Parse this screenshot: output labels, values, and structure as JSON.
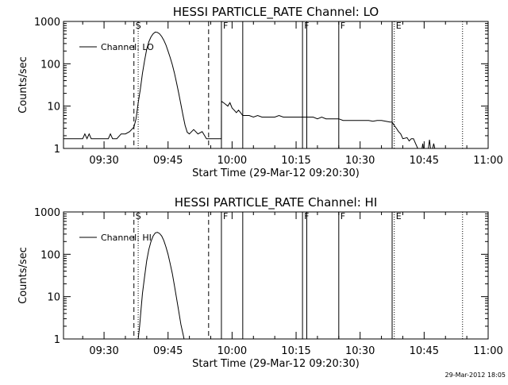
{
  "footer": {
    "timestamp": "29-Mar-2012 18:05"
  },
  "chart_data": [
    {
      "type": "line",
      "title": "HESSI PARTICLE_RATE Channel: LO",
      "xlabel": "Start Time (29-Mar-12 09:20:30)",
      "ylabel": "Counts/sec",
      "yscale": "log",
      "xlim": [
        "09:20:30",
        "11:00:00"
      ],
      "ylim": [
        1,
        1000
      ],
      "x_ticks": [
        "09:30",
        "09:45",
        "10:00",
        "10:15",
        "10:30",
        "10:45",
        "11:00"
      ],
      "y_ticks": [
        "1",
        "10",
        "100",
        "1000"
      ],
      "legend": {
        "label": "Channel: LO",
        "position": "top-left"
      },
      "grid": false,
      "markers": [
        {
          "label": "S",
          "time": "09:37:00",
          "style": "dashed"
        },
        {
          "label": "",
          "time": "09:38:00",
          "style": "dotted"
        },
        {
          "label": "",
          "time": "09:54:30",
          "style": "dashed"
        },
        {
          "label": "F",
          "time": "09:57:30",
          "style": "solid"
        },
        {
          "label": "",
          "time": "10:02:30",
          "style": "solid"
        },
        {
          "label": "F",
          "time": "10:16:30",
          "style": "solid"
        },
        {
          "label": "",
          "time": "10:17:30",
          "style": "solid"
        },
        {
          "label": "F",
          "time": "10:25:00",
          "style": "solid"
        },
        {
          "label": "",
          "time": "10:37:30",
          "style": "solid"
        },
        {
          "label": "E",
          "time": "10:38:00",
          "style": "dotted"
        },
        {
          "label": "",
          "time": "10:54:00",
          "style": "dotted"
        }
      ],
      "series": [
        {
          "name": "Channel: LO",
          "points": [
            [
              "09:20:30",
              1.7
            ],
            [
              "09:25:00",
              1.7
            ],
            [
              "09:25:30",
              2.2
            ],
            [
              "09:26:00",
              1.7
            ],
            [
              "09:26:30",
              2.2
            ],
            [
              "09:27:00",
              1.7
            ],
            [
              "09:31:00",
              1.7
            ],
            [
              "09:31:30",
              2.2
            ],
            [
              "09:32:00",
              1.7
            ],
            [
              "09:33:00",
              1.7
            ],
            [
              "09:34:00",
              2.2
            ],
            [
              "09:35:00",
              2.2
            ],
            [
              "09:36:00",
              2.5
            ],
            [
              "09:37:00",
              3.2
            ],
            [
              "09:37:30",
              5
            ],
            [
              "09:38:00",
              12
            ],
            [
              "09:38:30",
              25
            ],
            [
              "09:39:00",
              60
            ],
            [
              "09:39:30",
              120
            ],
            [
              "09:40:00",
              220
            ],
            [
              "09:40:30",
              330
            ],
            [
              "09:41:00",
              430
            ],
            [
              "09:41:30",
              510
            ],
            [
              "09:42:00",
              560
            ],
            [
              "09:42:30",
              550
            ],
            [
              "09:43:00",
              510
            ],
            [
              "09:43:30",
              440
            ],
            [
              "09:44:00",
              360
            ],
            [
              "09:44:30",
              280
            ],
            [
              "09:45:00",
              200
            ],
            [
              "09:45:30",
              140
            ],
            [
              "09:46:00",
              95
            ],
            [
              "09:46:30",
              60
            ],
            [
              "09:47:00",
              35
            ],
            [
              "09:47:30",
              20
            ],
            [
              "09:48:00",
              11
            ],
            [
              "09:48:30",
              6
            ],
            [
              "09:49:00",
              3.5
            ],
            [
              "09:49:30",
              2.4
            ],
            [
              "09:50:00",
              2.2
            ],
            [
              "09:51:00",
              2.8
            ],
            [
              "09:52:00",
              2.2
            ],
            [
              "09:53:00",
              2.5
            ],
            [
              "09:54:00",
              1.7
            ],
            [
              "09:55:00",
              1.7
            ],
            [
              "09:56:00",
              1.7
            ],
            [
              "09:57:30",
              1.7
            ],
            [
              "09:57:31",
              13
            ],
            [
              "09:58:00",
              12
            ],
            [
              "09:58:30",
              11
            ],
            [
              "09:59:00",
              10
            ],
            [
              "09:59:30",
              12
            ],
            [
              "10:00:00",
              9
            ],
            [
              "10:00:30",
              8
            ],
            [
              "10:01:00",
              7
            ],
            [
              "10:01:30",
              8
            ],
            [
              "10:02:00",
              7
            ],
            [
              "10:02:30",
              6
            ],
            [
              "10:03:00",
              6
            ],
            [
              "10:04:00",
              6
            ],
            [
              "10:05:00",
              5.5
            ],
            [
              "10:06:00",
              6
            ],
            [
              "10:07:00",
              5.5
            ],
            [
              "10:08:00",
              5.5
            ],
            [
              "10:09:00",
              5.5
            ],
            [
              "10:10:00",
              5.5
            ],
            [
              "10:11:00",
              6
            ],
            [
              "10:12:00",
              5.5
            ],
            [
              "10:13:00",
              5.5
            ],
            [
              "10:14:00",
              5.5
            ],
            [
              "10:15:00",
              5.5
            ],
            [
              "10:16:00",
              5.5
            ],
            [
              "10:17:00",
              5.5
            ],
            [
              "10:18:00",
              5.5
            ],
            [
              "10:19:00",
              5.5
            ],
            [
              "10:20:00",
              5
            ],
            [
              "10:21:00",
              5.5
            ],
            [
              "10:22:00",
              5
            ],
            [
              "10:23:00",
              5
            ],
            [
              "10:24:00",
              5
            ],
            [
              "10:25:00",
              5
            ],
            [
              "10:26:00",
              4.6
            ],
            [
              "10:27:00",
              4.6
            ],
            [
              "10:28:00",
              4.6
            ],
            [
              "10:29:00",
              4.6
            ],
            [
              "10:30:00",
              4.6
            ],
            [
              "10:31:00",
              4.6
            ],
            [
              "10:32:00",
              4.6
            ],
            [
              "10:33:00",
              4.4
            ],
            [
              "10:34:00",
              4.6
            ],
            [
              "10:35:00",
              4.6
            ],
            [
              "10:36:00",
              4.4
            ],
            [
              "10:37:00",
              4.2
            ],
            [
              "10:37:30",
              4.2
            ],
            [
              "10:38:00",
              3.5
            ],
            [
              "10:38:30",
              3
            ],
            [
              "10:39:00",
              2.5
            ],
            [
              "10:39:30",
              2.2
            ],
            [
              "10:40:00",
              1.7
            ],
            [
              "10:41:00",
              1.8
            ],
            [
              "10:41:30",
              1.5
            ],
            [
              "10:42:00",
              1.7
            ],
            [
              "10:42:30",
              1.7
            ],
            [
              "10:43:00",
              1.3
            ],
            [
              "10:43:30",
              1.0
            ]
          ],
          "segments": [
            [
              [
                "10:44:30",
                1.0
              ],
              [
                "10:44:40",
                1.3
              ],
              [
                "10:44:50",
                1.0
              ]
            ],
            [
              [
                "10:46:00",
                1.0
              ],
              [
                "10:46:15",
                1.6
              ],
              [
                "10:46:30",
                1.0
              ]
            ],
            [
              [
                "10:47:00",
                1.0
              ],
              [
                "10:47:15",
                1.3
              ],
              [
                "10:47:30",
                1.0
              ]
            ]
          ]
        }
      ]
    },
    {
      "type": "line",
      "title": "HESSI PARTICLE_RATE Channel: HI",
      "xlabel": "Start Time (29-Mar-12 09:20:30)",
      "ylabel": "Counts/sec",
      "yscale": "log",
      "xlim": [
        "09:20:30",
        "11:00:00"
      ],
      "ylim": [
        1,
        1000
      ],
      "x_ticks": [
        "09:30",
        "09:45",
        "10:00",
        "10:15",
        "10:30",
        "10:45",
        "11:00"
      ],
      "y_ticks": [
        "1",
        "10",
        "100",
        "1000"
      ],
      "legend": {
        "label": "Channel: HI",
        "position": "top-left"
      },
      "grid": false,
      "markers": [
        {
          "label": "S",
          "time": "09:37:00",
          "style": "dashed"
        },
        {
          "label": "",
          "time": "09:38:00",
          "style": "dotted"
        },
        {
          "label": "",
          "time": "09:54:30",
          "style": "dashed"
        },
        {
          "label": "F",
          "time": "09:57:30",
          "style": "solid"
        },
        {
          "label": "",
          "time": "10:02:30",
          "style": "solid"
        },
        {
          "label": "F",
          "time": "10:16:30",
          "style": "solid"
        },
        {
          "label": "",
          "time": "10:17:30",
          "style": "solid"
        },
        {
          "label": "F",
          "time": "10:25:00",
          "style": "solid"
        },
        {
          "label": "",
          "time": "10:37:30",
          "style": "solid"
        },
        {
          "label": "E",
          "time": "10:38:00",
          "style": "dotted"
        },
        {
          "label": "",
          "time": "10:54:00",
          "style": "dotted"
        }
      ],
      "series": [
        {
          "name": "Channel: HI",
          "points": [
            [
              "09:38:00",
              1.0
            ],
            [
              "09:38:20",
              2
            ],
            [
              "09:38:40",
              5
            ],
            [
              "09:39:00",
              12
            ],
            [
              "09:39:30",
              30
            ],
            [
              "09:40:00",
              70
            ],
            [
              "09:40:30",
              130
            ],
            [
              "09:41:00",
              200
            ],
            [
              "09:41:30",
              270
            ],
            [
              "09:42:00",
              320
            ],
            [
              "09:42:30",
              330
            ],
            [
              "09:43:00",
              310
            ],
            [
              "09:43:30",
              270
            ],
            [
              "09:44:00",
              210
            ],
            [
              "09:44:30",
              150
            ],
            [
              "09:45:00",
              100
            ],
            [
              "09:45:30",
              60
            ],
            [
              "09:46:00",
              35
            ],
            [
              "09:46:30",
              18
            ],
            [
              "09:47:00",
              9
            ],
            [
              "09:47:30",
              4.5
            ],
            [
              "09:48:00",
              2.2
            ],
            [
              "09:48:30",
              1.3
            ],
            [
              "09:48:45",
              1.0
            ]
          ],
          "segments": []
        }
      ]
    }
  ]
}
